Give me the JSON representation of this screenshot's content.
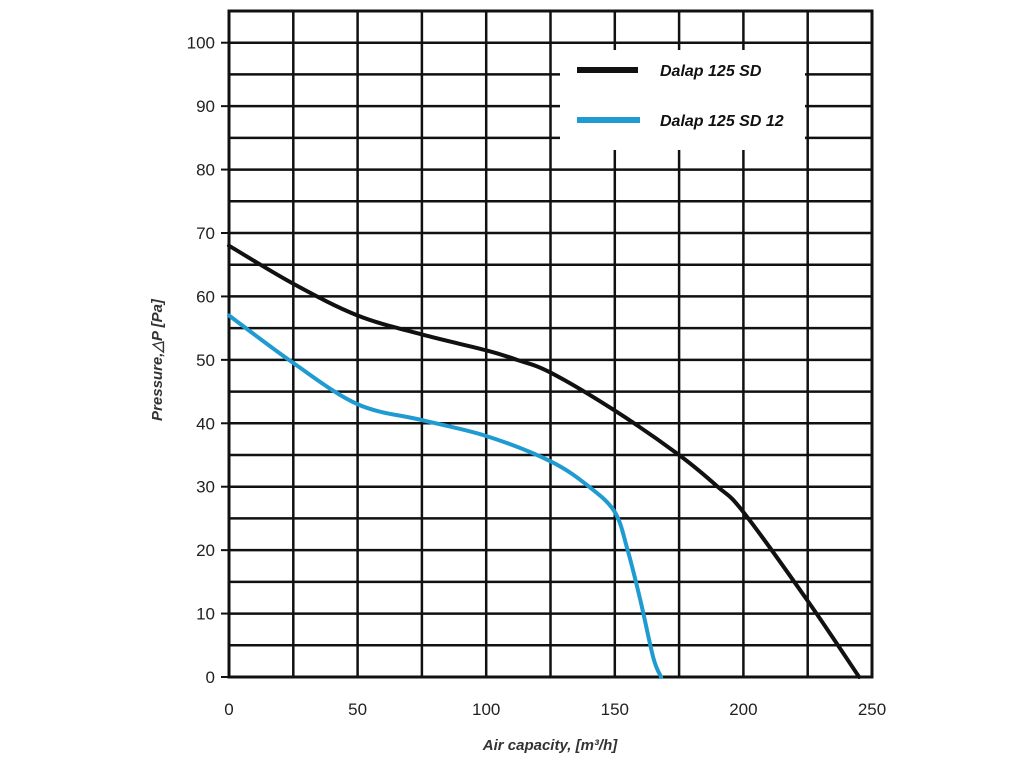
{
  "chart_data": {
    "type": "line",
    "title": "",
    "xlabel": "Air capacity, [m³/h]",
    "ylabel": "Pressure,△P [Pa]",
    "xlim": [
      0,
      250
    ],
    "ylim": [
      0,
      105
    ],
    "xticks": [
      0,
      50,
      100,
      150,
      200,
      250
    ],
    "yticks": [
      0,
      10,
      20,
      30,
      40,
      50,
      60,
      70,
      80,
      90,
      100
    ],
    "grid": true,
    "legend_position": "top-right",
    "series": [
      {
        "name": "Dalap 125 SD",
        "color": "#111111",
        "x": [
          0,
          25,
          50,
          75,
          100,
          112,
          125,
          150,
          175,
          190,
          200,
          225,
          245
        ],
        "y": [
          68,
          62,
          57,
          54,
          51.5,
          50,
          48,
          42,
          35,
          30,
          26,
          12,
          0
        ]
      },
      {
        "name": "Dalap 125 SD 12",
        "color": "#1f9bd1",
        "x": [
          0,
          25,
          50,
          75,
          100,
          125,
          140,
          150,
          155,
          160,
          165,
          168
        ],
        "y": [
          57,
          49.5,
          43,
          40.5,
          38,
          34,
          30,
          26,
          20,
          12,
          3,
          0
        ]
      }
    ]
  }
}
